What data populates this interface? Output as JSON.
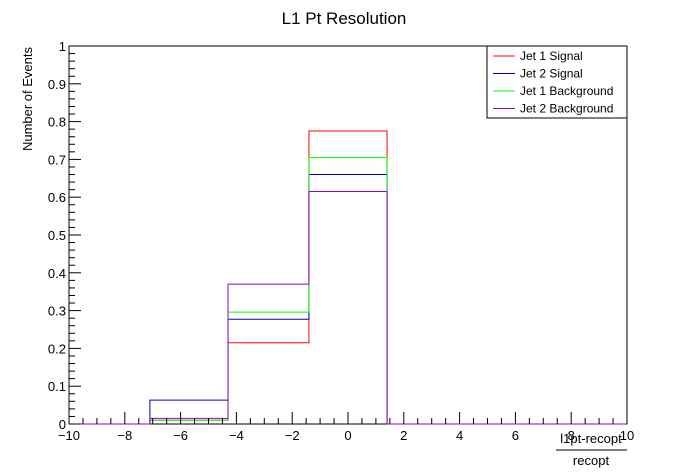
{
  "chart_data": {
    "type": "step-histogram",
    "title": "L1 Pt Resolution",
    "ylabel": "Number of Events",
    "xlabel_numerator": "l1pt-recopt",
    "xlabel_denominator": "recopt",
    "xlim": [
      -10,
      10
    ],
    "ylim": [
      0,
      1
    ],
    "grid": false,
    "legend_position": "top-right",
    "x_ticks": [
      -10,
      -8,
      -6,
      -4,
      -2,
      0,
      2,
      4,
      6,
      8,
      10
    ],
    "x_tick_labels": [
      "−10",
      "−8",
      "−6",
      "−4",
      "−2",
      "0",
      "2",
      "4",
      "6",
      "8",
      "10"
    ],
    "y_ticks": [
      0,
      0.1,
      0.2,
      0.3,
      0.4,
      0.5,
      0.6,
      0.7,
      0.8,
      0.9,
      1
    ],
    "y_tick_labels": [
      "0",
      "0.1",
      "0.2",
      "0.3",
      "0.4",
      "0.5",
      "0.6",
      "0.7",
      "0.8",
      "0.9",
      "1"
    ],
    "bin_edges": [
      -10,
      -7.1,
      -4.3,
      -1.4,
      1.4,
      4.3,
      7.1,
      10
    ],
    "series": [
      {
        "name": "Jet 1 Signal",
        "color": "#ff0000",
        "values": [
          0,
          0.01,
          0.215,
          0.775,
          0,
          0,
          0
        ]
      },
      {
        "name": "Jet 2 Signal",
        "color": "#0000cc",
        "values": [
          0,
          0.063,
          0.277,
          0.66,
          0,
          0,
          0
        ]
      },
      {
        "name": "Jet 1 Background",
        "color": "#00ff00",
        "values": [
          0,
          0.01,
          0.296,
          0.705,
          0,
          0,
          0
        ]
      },
      {
        "name": "Jet 2 Background",
        "color": "#9900cc",
        "values": [
          0,
          0.015,
          0.37,
          0.615,
          0,
          0,
          0
        ]
      }
    ]
  }
}
